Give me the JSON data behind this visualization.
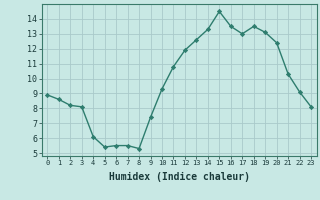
{
  "x": [
    0,
    1,
    2,
    3,
    4,
    5,
    6,
    7,
    8,
    9,
    10,
    11,
    12,
    13,
    14,
    15,
    16,
    17,
    18,
    19,
    20,
    21,
    22,
    23
  ],
  "y": [
    8.9,
    8.6,
    8.2,
    8.1,
    6.1,
    5.4,
    5.5,
    5.5,
    5.3,
    7.4,
    9.3,
    10.8,
    11.9,
    12.6,
    13.3,
    14.5,
    13.5,
    13.0,
    13.5,
    13.1,
    12.4,
    10.3,
    9.1,
    8.1
  ],
  "line_color": "#2e7d6e",
  "marker": "D",
  "marker_size": 2.2,
  "line_width": 1.0,
  "bg_color": "#c8e8e4",
  "grid_color": "#aacaca",
  "xlabel": "Humidex (Indice chaleur)",
  "xlabel_fontsize": 7,
  "xlabel_weight": "bold",
  "ylabel_ticks": [
    5,
    6,
    7,
    8,
    9,
    10,
    11,
    12,
    13,
    14
  ],
  "xtick_labels": [
    "0",
    "1",
    "2",
    "3",
    "4",
    "5",
    "6",
    "7",
    "8",
    "9",
    "10",
    "11",
    "12",
    "13",
    "14",
    "15",
    "16",
    "17",
    "18",
    "19",
    "20",
    "21",
    "22",
    "23"
  ],
  "xtick_fontsize": 5,
  "ytick_fontsize": 6,
  "ylim": [
    4.8,
    15.0
  ],
  "xlim": [
    -0.5,
    23.5
  ]
}
